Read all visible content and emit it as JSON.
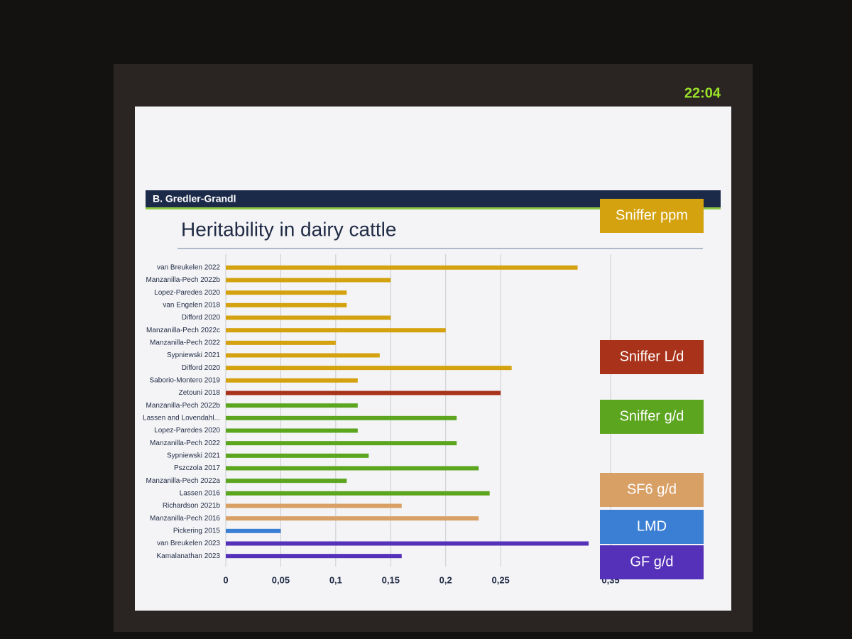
{
  "clock": "22:04",
  "author": "B. Gredler-Grandl",
  "chart_data": {
    "type": "bar",
    "orientation": "horizontal",
    "title": "Heritability in dairy cattle",
    "categories": [
      "van Breukelen 2022",
      "Manzanilla-Pech 2022b",
      "Lopez-Paredes 2020",
      "van Engelen 2018",
      "Difford 2020",
      "Manzanilla-Pech 2022c",
      "Manzanilla-Pech 2022",
      "Sypniewski 2021",
      "Difford 2020",
      "Saborio-Montero 2019",
      "Zetouni 2018",
      "Manzanilla-Pech 2022b",
      "Lassen and Lovendahl...",
      "Lopez-Paredes 2020",
      "Manzanilla-Pech 2022",
      "Sypniewski 2021",
      "Pszczola 2017",
      "Manzanilla-Pech 2022a",
      "Lassen 2016",
      "Richardson 2021b",
      "Manzanilla-Pech 2016",
      "Pickering 2015",
      "van Breukelen 2023",
      "Kamalanathan 2023"
    ],
    "series": [
      {
        "name": "Sniffer ppm",
        "color": "#d4a20f",
        "values": [
          0.32,
          0.15,
          0.11,
          0.11,
          0.15,
          0.2,
          0.1,
          0.14,
          0.26,
          0.12,
          null,
          null,
          null,
          null,
          null,
          null,
          null,
          null,
          null,
          null,
          null,
          null,
          null,
          null
        ]
      },
      {
        "name": "Sniffer L/d",
        "color": "#a8321a",
        "values": [
          null,
          null,
          null,
          null,
          null,
          null,
          null,
          null,
          null,
          null,
          0.25,
          null,
          null,
          null,
          null,
          null,
          null,
          null,
          null,
          null,
          null,
          null,
          null,
          null
        ]
      },
      {
        "name": "Sniffer g/d",
        "color": "#5ba51f",
        "values": [
          null,
          null,
          null,
          null,
          null,
          null,
          null,
          null,
          null,
          null,
          null,
          0.12,
          0.21,
          0.12,
          0.21,
          0.13,
          0.23,
          0.11,
          0.24,
          null,
          null,
          null,
          null,
          null
        ]
      },
      {
        "name": "SF6 g/d",
        "color": "#d9a066",
        "values": [
          null,
          null,
          null,
          null,
          null,
          null,
          null,
          null,
          null,
          null,
          null,
          null,
          null,
          null,
          null,
          null,
          null,
          null,
          null,
          0.16,
          0.23,
          null,
          null,
          null
        ]
      },
      {
        "name": "LMD",
        "color": "#3a7fd4",
        "values": [
          null,
          null,
          null,
          null,
          null,
          null,
          null,
          null,
          null,
          null,
          null,
          null,
          null,
          null,
          null,
          null,
          null,
          null,
          null,
          null,
          null,
          0.05,
          null,
          null
        ]
      },
      {
        "name": "GF g/d",
        "color": "#5530b8",
        "values": [
          null,
          null,
          null,
          null,
          null,
          null,
          null,
          null,
          null,
          null,
          null,
          null,
          null,
          null,
          null,
          null,
          null,
          null,
          null,
          null,
          null,
          null,
          0.33,
          0.16
        ]
      }
    ],
    "xlim": [
      0,
      0.35
    ],
    "xticks": [
      0,
      {
        "value": 0.05,
        "label": "0,05"
      },
      {
        "value": 0.1,
        "label": "0,1"
      },
      {
        "value": 0.15,
        "label": "0,15"
      },
      {
        "value": 0.2,
        "label": "0,2"
      },
      {
        "value": 0.25,
        "label": "0,25"
      },
      {
        "value": 0.35,
        "label": "0,35"
      }
    ],
    "grid": true
  }
}
